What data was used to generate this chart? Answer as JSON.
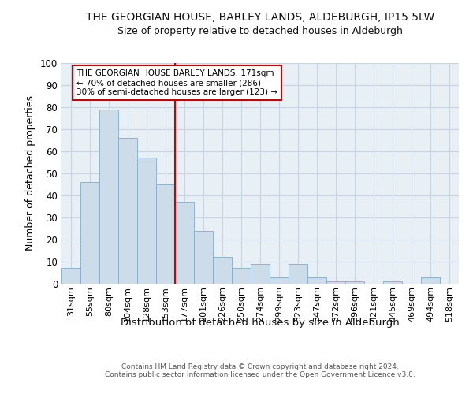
{
  "title": "THE GEORGIAN HOUSE, BARLEY LANDS, ALDEBURGH, IP15 5LW",
  "subtitle": "Size of property relative to detached houses in Aldeburgh",
  "xlabel": "Distribution of detached houses by size in Aldeburgh",
  "ylabel": "Number of detached properties",
  "footer_line1": "Contains HM Land Registry data © Crown copyright and database right 2024.",
  "footer_line2": "Contains public sector information licensed under the Open Government Licence v3.0.",
  "bar_labels": [
    "31sqm",
    "55sqm",
    "80sqm",
    "104sqm",
    "128sqm",
    "153sqm",
    "177sqm",
    "201sqm",
    "226sqm",
    "250sqm",
    "274sqm",
    "299sqm",
    "323sqm",
    "347sqm",
    "372sqm",
    "396sqm",
    "421sqm",
    "445sqm",
    "469sqm",
    "494sqm",
    "518sqm"
  ],
  "bar_values": [
    7,
    46,
    79,
    66,
    57,
    45,
    37,
    24,
    12,
    7,
    9,
    3,
    9,
    3,
    1,
    1,
    0,
    1,
    0,
    3,
    0
  ],
  "bar_color": "#ccdce9",
  "bar_edgecolor": "#8ab4d0",
  "grid_color": "#c8d4e0",
  "background_color": "#e8eff5",
  "vline_x_idx": 6,
  "annotation_text": "THE GEORGIAN HOUSE BARLEY LANDS: 171sqm\n← 70% of detached houses are smaller (286)\n30% of semi-detached houses are larger (123) →",
  "annotation_box_color": "#ffffff",
  "annotation_box_edgecolor": "#cc0000",
  "vline_color": "#cc0000",
  "ylim": [
    0,
    100
  ],
  "yticks": [
    0,
    10,
    20,
    30,
    40,
    50,
    60,
    70,
    80,
    90,
    100
  ]
}
